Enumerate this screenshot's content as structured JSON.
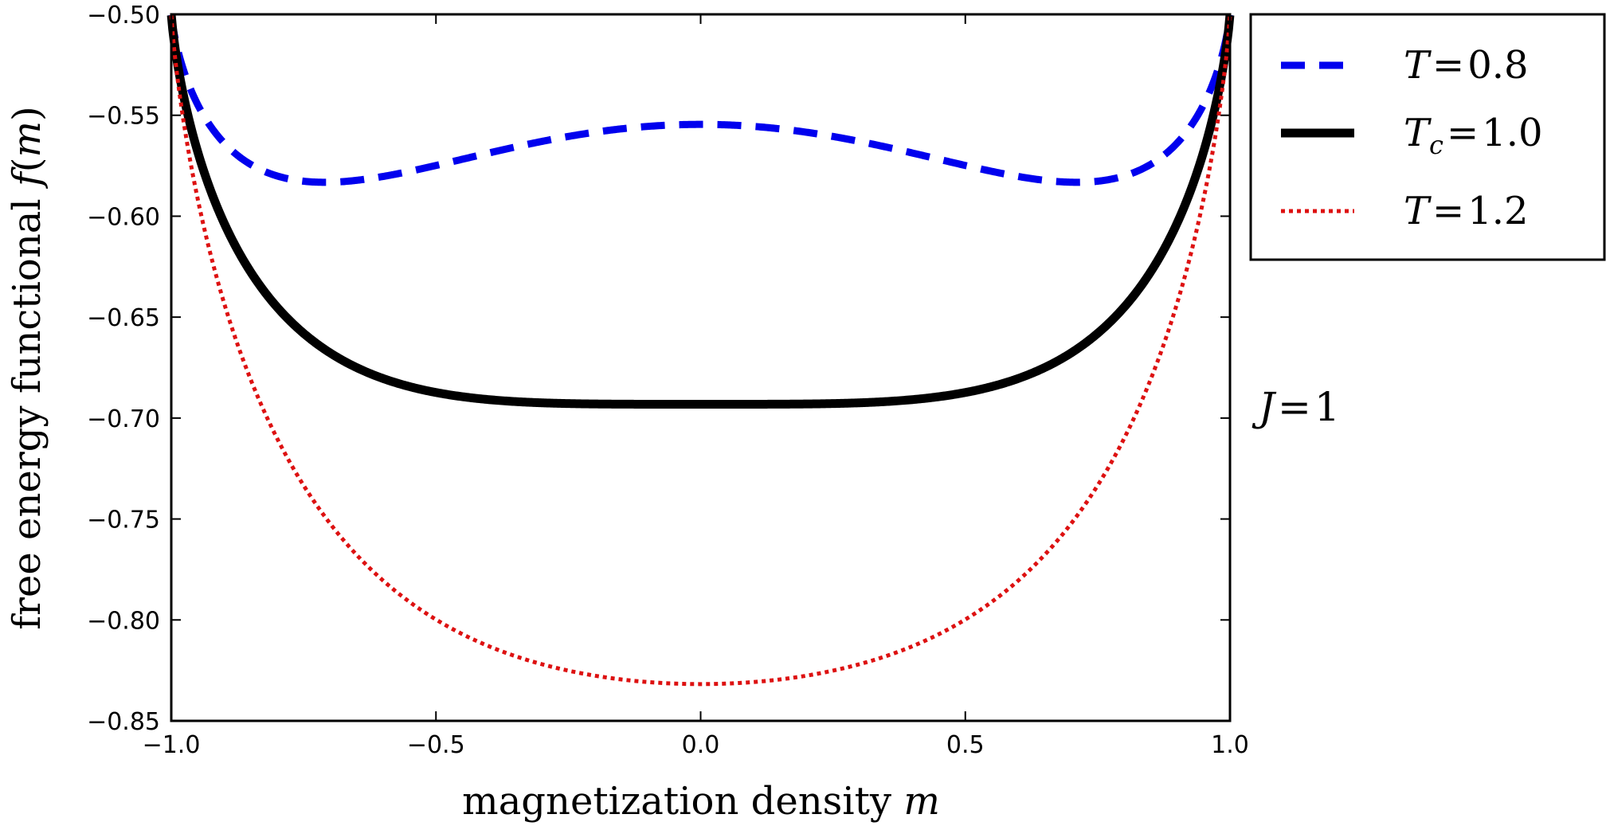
{
  "chart_data": {
    "type": "line",
    "title": "",
    "xlabel": "magnetization density",
    "xlabel_var": "m",
    "ylabel": "free energy functional",
    "ylabel_func": "f",
    "ylabel_var": "m",
    "xlim": [
      -1.0,
      1.0
    ],
    "ylim": [
      -0.85,
      -0.5
    ],
    "x_ticks": [
      "−1.0",
      "−0.5",
      "0.0",
      "0.5",
      "1.0"
    ],
    "y_ticks": [
      "−0.50",
      "−0.55",
      "−0.60",
      "−0.65",
      "−0.70",
      "−0.75",
      "−0.80",
      "−0.85"
    ],
    "grid": false,
    "legend_position": "outside-top-right",
    "J": 1,
    "annotation": {
      "var": "J",
      "eq": "=",
      "value": "1"
    },
    "series": [
      {
        "name": "T=0.8",
        "var": "T",
        "sub": "",
        "value": "0.8",
        "T": 0.8,
        "style": "dashed",
        "color": "#0000ee"
      },
      {
        "name": "Tc=1.0",
        "var": "T",
        "sub": "c",
        "value": "1.0",
        "T": 1.0,
        "style": "solid",
        "color": "#000000"
      },
      {
        "name": "T=1.2",
        "var": "T",
        "sub": "",
        "value": "1.2",
        "T": 1.2,
        "style": "dotted",
        "color": "#dd1111"
      }
    ]
  }
}
